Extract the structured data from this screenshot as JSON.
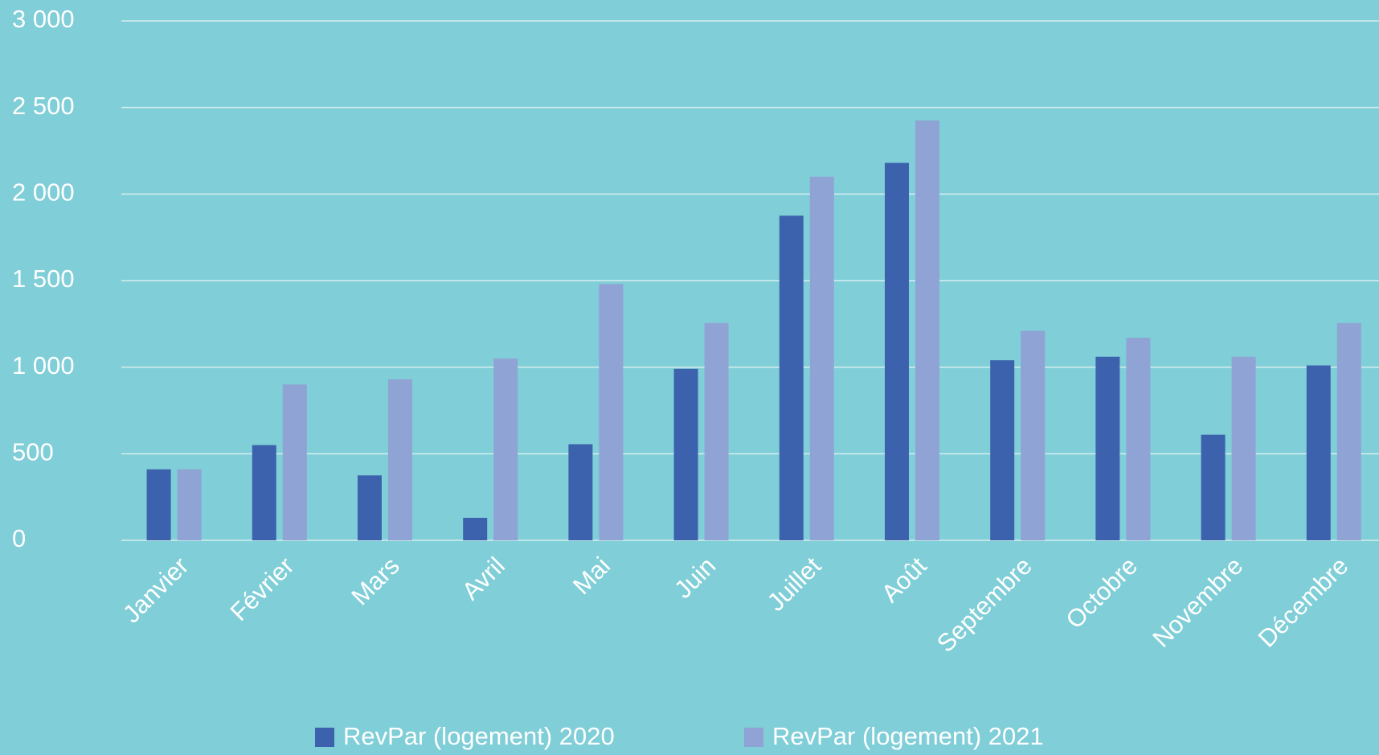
{
  "chart_data": {
    "type": "bar",
    "categories": [
      "Janvier",
      "Février",
      "Mars",
      "Avril",
      "Mai",
      "Juin",
      "Juillet",
      "Août",
      "Septembre",
      "Octobre",
      "Novembre",
      "Décembre"
    ],
    "series": [
      {
        "name": "RevPar (logement) 2020",
        "color": "#3c62ae",
        "values": [
          410,
          550,
          375,
          130,
          555,
          990,
          1875,
          2180,
          1040,
          1060,
          610,
          1010
        ]
      },
      {
        "name": "RevPar (logement) 2021",
        "color": "#8fa3d4",
        "values": [
          410,
          900,
          930,
          1050,
          1480,
          1255,
          2100,
          2425,
          1210,
          1170,
          1060,
          1255
        ]
      }
    ],
    "ylim": [
      0,
      3000
    ],
    "yticks": [
      0,
      500,
      {
        "value": 1000,
        "label": "1 000"
      },
      {
        "value": 1500,
        "label": "1 500"
      },
      {
        "value": 2000,
        "label": "2 000"
      },
      {
        "value": 2500,
        "label": "2 500"
      },
      {
        "value": 3000,
        "label": "3 000"
      }
    ],
    "grid": true,
    "legend": "bottom"
  }
}
